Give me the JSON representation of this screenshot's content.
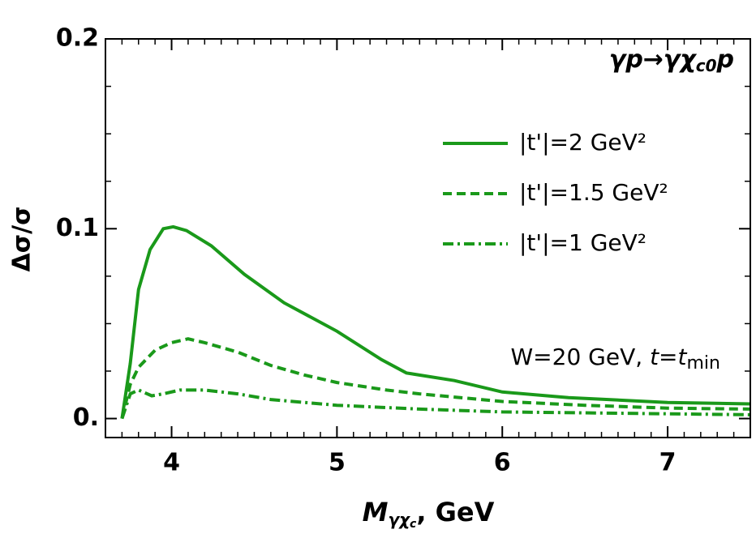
{
  "chart_data": {
    "type": "line",
    "annotation_parts": [
      "γp→γχ",
      "c0",
      "p"
    ],
    "condition_parts": [
      "W=20 GeV, ",
      "t",
      "=",
      "t",
      "min"
    ],
    "xlabel_parts": [
      "M",
      "γχ",
      "c",
      ", GeV"
    ],
    "ylabel": "Δσ/σ",
    "xlim": [
      3.6,
      7.5
    ],
    "ylim": [
      -0.01,
      0.2
    ],
    "xticks": [
      4,
      5,
      6,
      7
    ],
    "yticks": [
      {
        "value": 0,
        "label": "0."
      },
      0.1,
      0.2
    ],
    "xminorticks": [
      3.7,
      3.8,
      3.9,
      4.1,
      4.2,
      4.3,
      4.4,
      4.5,
      4.6,
      4.7,
      4.8,
      4.9,
      5.1,
      5.2,
      5.3,
      5.4,
      5.5,
      5.6,
      5.7,
      5.8,
      5.9,
      6.1,
      6.2,
      6.3,
      6.4,
      6.5,
      6.6,
      6.7,
      6.8,
      6.9,
      7.1,
      7.2,
      7.3,
      7.4
    ],
    "yminorticks": [
      0.025,
      0.05,
      0.075,
      0.125,
      0.15,
      0.175
    ],
    "series": [
      {
        "name": "|t'|=2 GeV²",
        "color": "#1a991a",
        "linestyle": "solid",
        "x": [
          3.7,
          3.75,
          3.8,
          3.87,
          3.95,
          4.01,
          4.09,
          4.24,
          4.44,
          4.68,
          5.0,
          5.27,
          5.42,
          5.71,
          6.0,
          6.4,
          7.0,
          7.5
        ],
        "values": [
          0,
          0.029,
          0.068,
          0.089,
          0.1,
          0.101,
          0.099,
          0.091,
          0.076,
          0.061,
          0.046,
          0.031,
          0.024,
          0.02,
          0.014,
          0.011,
          0.0085,
          0.0077
        ]
      },
      {
        "name": "|t'|=1.5 GeV²",
        "color": "#1a991a",
        "linestyle": "dashed",
        "x": [
          3.7,
          3.75,
          3.8,
          3.9,
          4.0,
          4.1,
          4.2,
          4.4,
          4.6,
          4.8,
          5.0,
          5.3,
          5.5,
          6.0,
          6.5,
          7.0,
          7.5
        ],
        "values": [
          0,
          0.018,
          0.027,
          0.036,
          0.04,
          0.042,
          0.04,
          0.035,
          0.028,
          0.023,
          0.019,
          0.015,
          0.013,
          0.009,
          0.007,
          0.0055,
          0.005
        ]
      },
      {
        "name": "|t'|=1 GeV²",
        "color": "#1a991a",
        "linestyle": "dashdot",
        "x": [
          3.7,
          3.75,
          3.8,
          3.88,
          3.95,
          4.05,
          4.2,
          4.4,
          4.6,
          5.0,
          5.5,
          6.0,
          7.0,
          7.5
        ],
        "values": [
          0,
          0.013,
          0.015,
          0.012,
          0.013,
          0.015,
          0.015,
          0.013,
          0.01,
          0.007,
          0.005,
          0.0035,
          0.0025,
          0.002
        ]
      }
    ]
  }
}
